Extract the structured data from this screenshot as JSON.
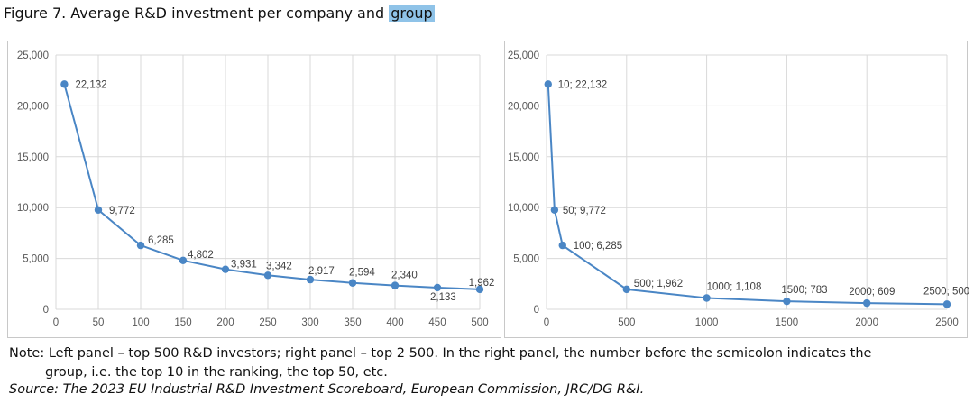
{
  "figure": {
    "title_prefix": "Figure 7. Average R&D investment per company and ",
    "title_highlight": "group",
    "note_line1": "Note: Left panel – top 500 R&D investors; right panel – top 2 500. In the right panel, the number before the semicolon indicates the",
    "note_line2": "group, i.e. the top 10 in the ranking, the top 50, etc.",
    "source": "Source: The 2023 EU Industrial R&D Investment Scoreboard, European Commission, JRC/DG R&I."
  },
  "colors": {
    "series": "#4a86c5",
    "grid": "#d9d9d9",
    "highlight": "#8fc3e8"
  },
  "chart_data": [
    {
      "type": "line",
      "title": "",
      "xlabel": "",
      "ylabel": "",
      "x": [
        10,
        50,
        100,
        150,
        200,
        250,
        300,
        350,
        400,
        450,
        500
      ],
      "series": [
        {
          "values": [
            22132,
            9772,
            6285,
            4802,
            3931,
            3342,
            2917,
            2594,
            2340,
            2133,
            1962
          ]
        }
      ],
      "point_labels": [
        "22,132",
        "9,772",
        "6,285",
        "4,802",
        "3,931",
        "3,342",
        "2,917",
        "2,594",
        "2,340",
        "2,133",
        "1,962"
      ],
      "xlim": [
        0,
        500
      ],
      "ylim": [
        0,
        25000
      ],
      "xticks": [
        "0",
        "50",
        "100",
        "150",
        "200",
        "250",
        "300",
        "350",
        "400",
        "450",
        "500"
      ],
      "yticks": [
        "0",
        "5,000",
        "10,000",
        "15,000",
        "20,000",
        "25,000"
      ],
      "grid": true,
      "legend": "none"
    },
    {
      "type": "line",
      "title": "",
      "xlabel": "",
      "ylabel": "",
      "x": [
        10,
        50,
        100,
        500,
        1000,
        1500,
        2000,
        2500
      ],
      "series": [
        {
          "values": [
            22132,
            9772,
            6285,
            1962,
            1108,
            783,
            609,
            500
          ]
        }
      ],
      "point_labels": [
        "10; 22,132",
        "50; 9,772",
        "100; 6,285",
        "500; 1,962",
        "1000; 1,108",
        "1500; 783",
        "2000; 609",
        "2500; 500"
      ],
      "xlim": [
        0,
        2500
      ],
      "ylim": [
        0,
        25000
      ],
      "xticks": [
        "0",
        "500",
        "1000",
        "1500",
        "2000",
        "2500"
      ],
      "yticks": [
        "0",
        "5,000",
        "10,000",
        "15,000",
        "20,000",
        "25,000"
      ],
      "grid": true,
      "legend": "none"
    }
  ]
}
